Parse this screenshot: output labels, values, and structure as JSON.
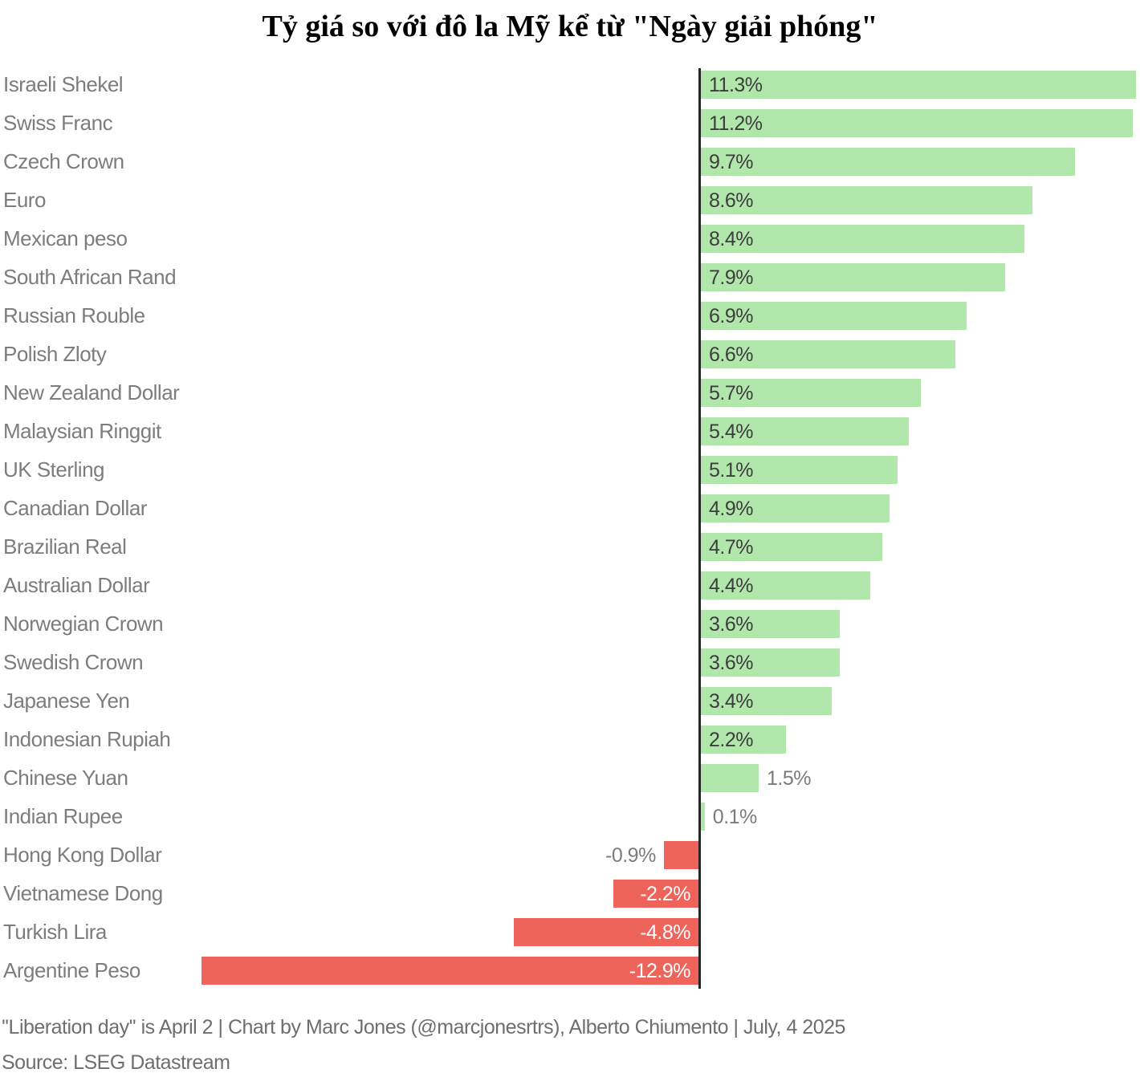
{
  "title": "Tỷ giá so với đô la Mỹ kể từ \"Ngày giải phóng\"",
  "footer": {
    "note": "''Liberation day'' is April 2 | Chart by Marc Jones (@marcjonesrtrs), Alberto Chiumento | July, 4 2025",
    "source": "Source: LSEG Datastream"
  },
  "chart_data": {
    "type": "bar",
    "orientation": "horizontal",
    "title": "Tỷ giá so với đô la Mỹ kể từ \"Ngày giải phóng\"",
    "xlabel": "",
    "ylabel": "",
    "xlim": [
      -13.0,
      11.4
    ],
    "grid": false,
    "legend": false,
    "unit": "%",
    "categories": [
      "Israeli Shekel",
      "Swiss Franc",
      "Czech Crown",
      "Euro",
      "Mexican peso",
      "South African Rand",
      "Russian Rouble",
      "Polish Zloty",
      "New Zealand Dollar",
      "Malaysian Ringgit",
      "UK Sterling",
      "Canadian Dollar",
      "Brazilian Real",
      "Australian Dollar",
      "Norwegian Crown",
      "Swedish Crown",
      "Japanese Yen",
      "Indonesian Rupiah",
      "Chinese Yuan",
      "Indian Rupee",
      "Hong Kong Dollar",
      "Vietnamese Dong",
      "Turkish Lira",
      "Argentine Peso"
    ],
    "values": [
      11.3,
      11.2,
      9.7,
      8.6,
      8.4,
      7.9,
      6.9,
      6.6,
      5.7,
      5.4,
      5.1,
      4.9,
      4.7,
      4.4,
      3.6,
      3.6,
      3.4,
      2.2,
      1.5,
      0.1,
      -0.9,
      -2.2,
      -4.8,
      -12.9
    ],
    "value_labels": [
      "11.3%",
      "11.2%",
      "9.7%",
      "8.6%",
      "8.4%",
      "7.9%",
      "6.9%",
      "6.6%",
      "5.7%",
      "5.4%",
      "5.1%",
      "4.9%",
      "4.7%",
      "4.4%",
      "3.6%",
      "3.6%",
      "3.4%",
      "2.2%",
      "1.5%",
      "0.1%",
      "-0.9%",
      "-2.2%",
      "-4.8%",
      "-12.9%"
    ],
    "colors": {
      "positive_bar": "#b2e7ab",
      "negative_bar": "#ee645b",
      "axis": "#262626",
      "label_inside_positive": "#3d3d3d",
      "label_inside_negative": "#ffffff",
      "label_outside": "#7b7b7b",
      "category_label": "#7d7d7d"
    }
  }
}
